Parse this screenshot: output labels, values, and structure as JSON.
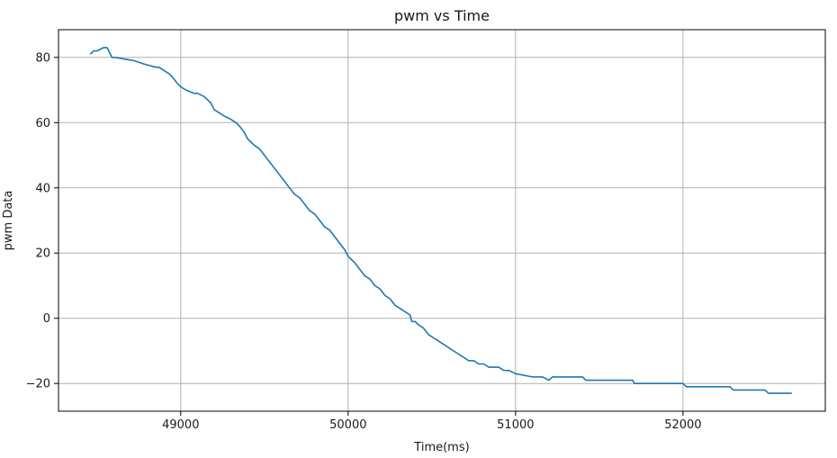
{
  "chart_data": {
    "type": "line",
    "title": "pwm vs Time",
    "xlabel": "Time(ms)",
    "ylabel": "pwm Data",
    "xlim": [
      48270,
      52850
    ],
    "ylim": [
      -28.5,
      88.5
    ],
    "xticks": [
      49000,
      50000,
      51000,
      52000
    ],
    "yticks": [
      -20,
      0,
      20,
      40,
      60,
      80
    ],
    "grid": true,
    "series": [
      {
        "color": "#1f77b4",
        "x": [
          48460,
          48480,
          48500,
          48540,
          48560,
          48590,
          48610,
          48720,
          48780,
          48850,
          48870,
          48900,
          48930,
          48950,
          48980,
          49000,
          49030,
          49080,
          49100,
          49140,
          49160,
          49180,
          49200,
          49230,
          49260,
          49300,
          49330,
          49350,
          49380,
          49400,
          49420,
          49440,
          49470,
          49500,
          49530,
          49560,
          49590,
          49620,
          49650,
          49680,
          49710,
          49740,
          49770,
          49800,
          49830,
          49860,
          49890,
          49920,
          49950,
          49980,
          50000,
          50020,
          50040,
          50070,
          50100,
          50130,
          50160,
          50190,
          50220,
          50250,
          50280,
          50310,
          50340,
          50370,
          50380,
          50400,
          50420,
          50450,
          50480,
          50510,
          50540,
          50570,
          50600,
          50630,
          50660,
          50690,
          50720,
          50750,
          50780,
          50810,
          50840,
          50870,
          50900,
          50930,
          50960,
          51000,
          51100,
          51160,
          51200,
          51220,
          51400,
          51420,
          51700,
          51710,
          51990,
          52000,
          52020,
          52050,
          52280,
          52300,
          52490,
          52510,
          52650
        ],
        "y": [
          81,
          82,
          82,
          83,
          83,
          80,
          80,
          79,
          78,
          77,
          77,
          76,
          75,
          74,
          72,
          71,
          70,
          69,
          69,
          68,
          67,
          66,
          64,
          63,
          62,
          61,
          60,
          59,
          57,
          55,
          54,
          53,
          52,
          50,
          48,
          46,
          44,
          42,
          40,
          38,
          37,
          35,
          33,
          32,
          30,
          28,
          27,
          25,
          23,
          21,
          19,
          18,
          17,
          15,
          13,
          12,
          10,
          9,
          7,
          6,
          4,
          3,
          2,
          1,
          -1,
          -1,
          -2,
          -3,
          -5,
          -6,
          -7,
          -8,
          -9,
          -10,
          -11,
          -12,
          -13,
          -13,
          -14,
          -14,
          -15,
          -15,
          -15,
          -16,
          -16,
          -17,
          -18,
          -18,
          -19,
          -18,
          -18,
          -19,
          -19,
          -20,
          -20,
          -20,
          -21,
          -21,
          -21,
          -22,
          -22,
          -23,
          -23
        ]
      }
    ]
  }
}
